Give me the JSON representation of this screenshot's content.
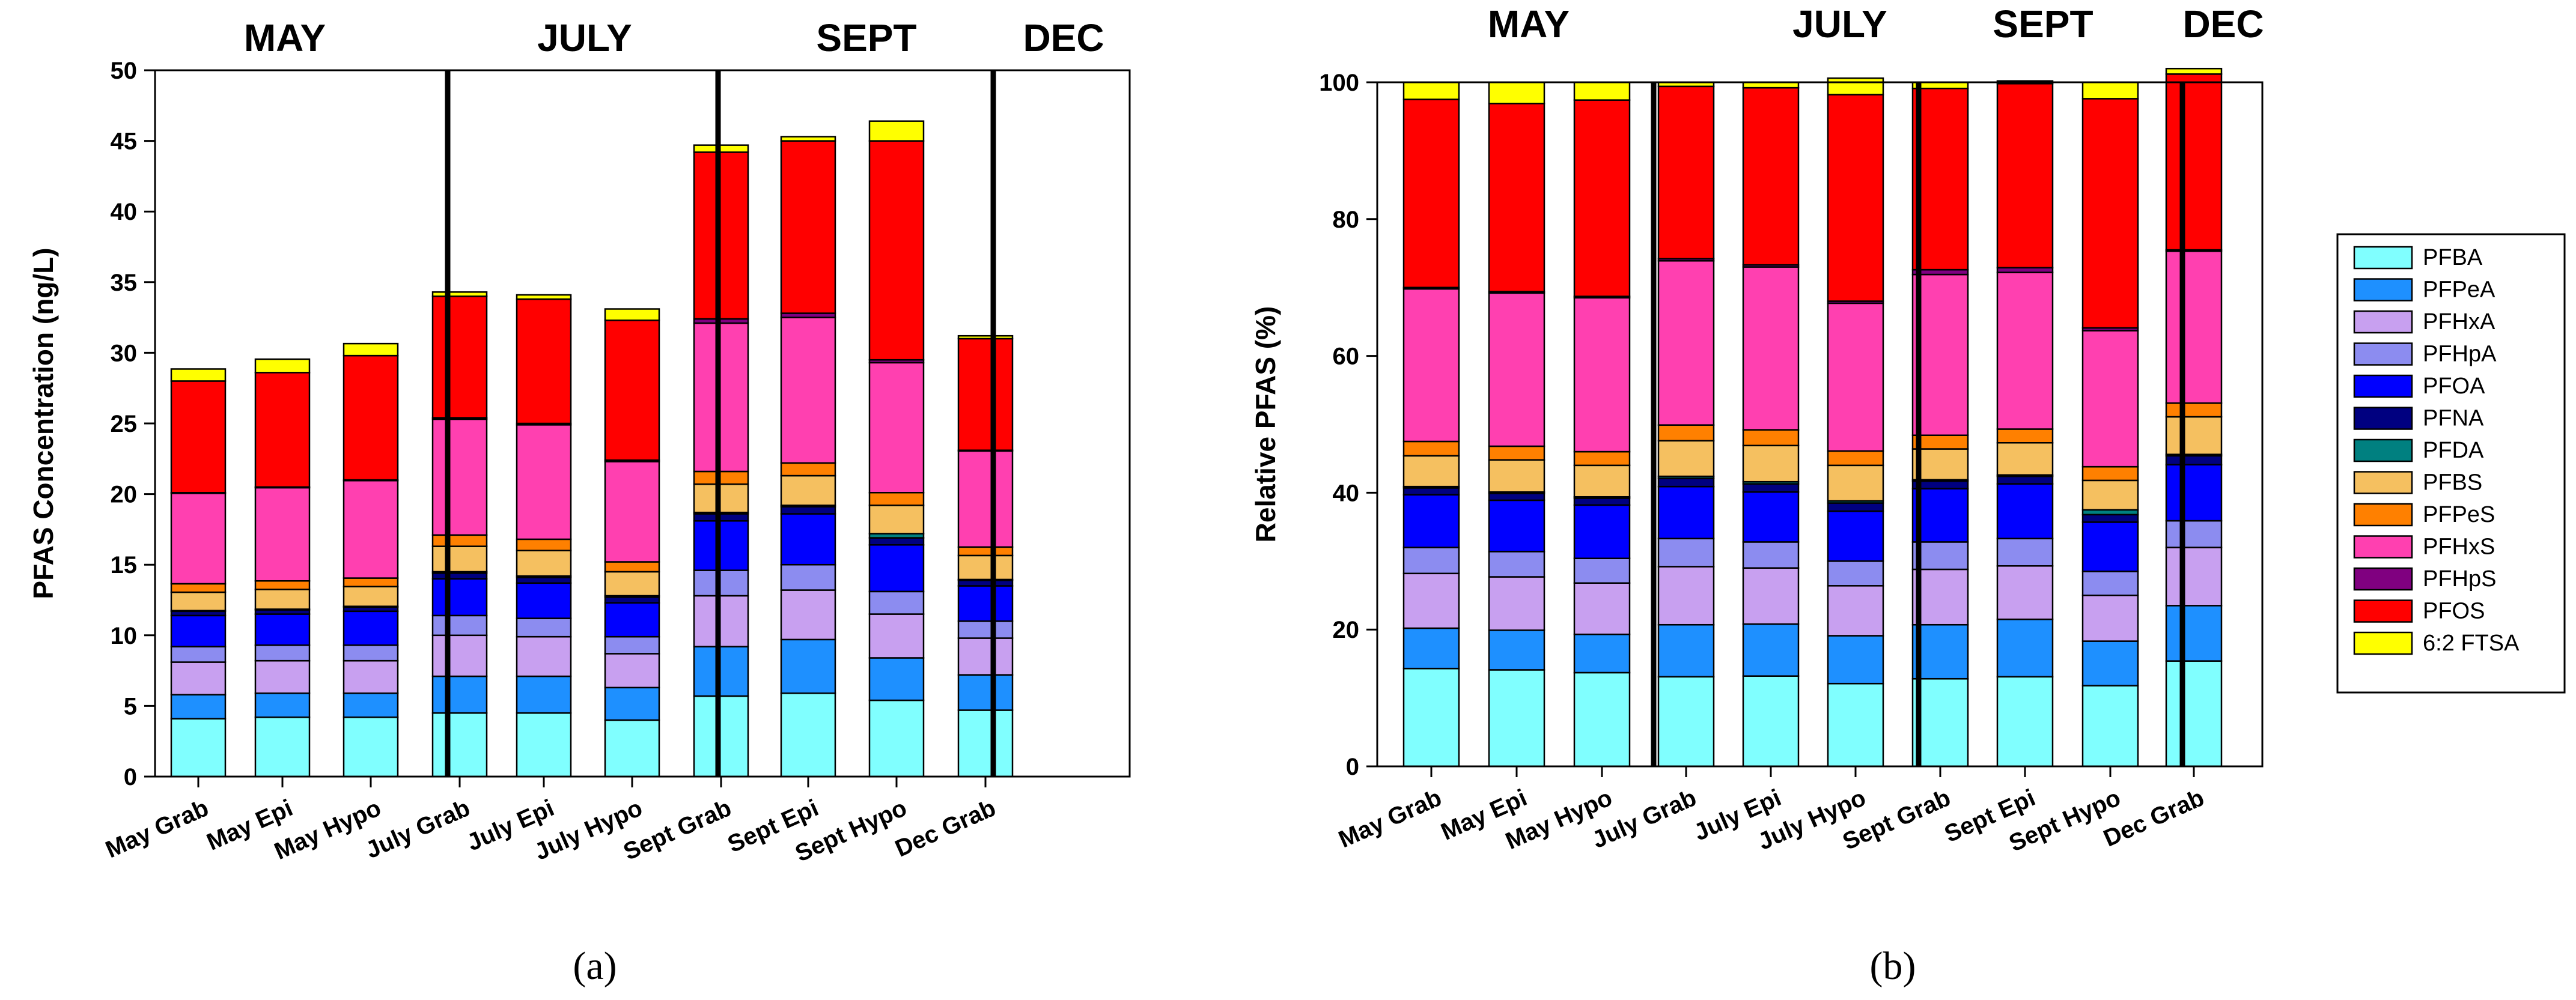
{
  "figure": {
    "colors": {
      "PFBA": "#80ffff",
      "PFPeA": "#1e90ff",
      "PFHxA": "#c8a0f0",
      "PFHpA": "#8c8cf0",
      "PFOA": "#0000ff",
      "PFNA": "#000080",
      "PFDA": "#008080",
      "PFBS": "#f5c060",
      "PFPeS": "#ff8000",
      "PFHxS": "#ff40b0",
      "PFHpS": "#800080",
      "PFOS": "#ff0000",
      "6:2 FTSA": "#ffff00"
    }
  },
  "chart_data": [
    {
      "panel": "(a)",
      "type": "bar",
      "stacked": true,
      "ylabel": "PFAS Concentration (ng/L)",
      "xlabel": "",
      "ylim": [
        0,
        50
      ],
      "yticks": [
        0,
        5,
        10,
        15,
        20,
        25,
        30,
        35,
        40,
        45,
        50
      ],
      "categories": [
        "May Grab",
        "May Epi",
        "May Hypo",
        "July Grab",
        "July Epi",
        "July Hypo",
        "Sept Grab",
        "Sept Epi",
        "Sept Hypo",
        "Dec Grab"
      ],
      "groups": [
        {
          "label": "MAY",
          "start": 0,
          "end": 2
        },
        {
          "label": "JULY",
          "start": 3,
          "end": 5
        },
        {
          "label": "SEPT",
          "start": 6,
          "end": 8
        },
        {
          "label": "DEC",
          "start": 9,
          "end": 9
        }
      ],
      "series": [
        {
          "name": "PFBA",
          "values": [
            4.1,
            4.2,
            4.2,
            4.5,
            4.5,
            4.0,
            5.7,
            5.9,
            5.4,
            4.7
          ]
        },
        {
          "name": "PFPeA",
          "values": [
            1.7,
            1.7,
            1.7,
            2.6,
            2.6,
            2.3,
            3.5,
            3.8,
            3.0,
            2.5
          ]
        },
        {
          "name": "PFHxA",
          "values": [
            2.3,
            2.3,
            2.3,
            2.9,
            2.8,
            2.4,
            3.6,
            3.5,
            3.1,
            2.6
          ]
        },
        {
          "name": "PFHpA",
          "values": [
            1.1,
            1.1,
            1.1,
            1.4,
            1.3,
            1.2,
            1.8,
            1.8,
            1.6,
            1.2
          ]
        },
        {
          "name": "PFOA",
          "values": [
            2.2,
            2.2,
            2.4,
            2.6,
            2.5,
            2.4,
            3.5,
            3.6,
            3.3,
            2.5
          ]
        },
        {
          "name": "PFNA",
          "values": [
            0.3,
            0.3,
            0.3,
            0.4,
            0.4,
            0.4,
            0.5,
            0.5,
            0.5,
            0.4
          ]
        },
        {
          "name": "PFDA",
          "values": [
            0.05,
            0.05,
            0.05,
            0.1,
            0.1,
            0.1,
            0.1,
            0.1,
            0.3,
            0.05
          ]
        },
        {
          "name": "PFBS",
          "values": [
            1.3,
            1.4,
            1.4,
            1.8,
            1.8,
            1.7,
            2.0,
            2.1,
            2.0,
            1.7
          ]
        },
        {
          "name": "PFPeS",
          "values": [
            0.6,
            0.6,
            0.6,
            0.8,
            0.8,
            0.7,
            0.9,
            0.9,
            0.9,
            0.6
          ]
        },
        {
          "name": "PFHxS",
          "values": [
            6.4,
            6.6,
            6.9,
            8.2,
            8.1,
            7.1,
            10.5,
            10.3,
            9.2,
            6.8
          ]
        },
        {
          "name": "PFHpS",
          "values": [
            0.05,
            0.05,
            0.05,
            0.1,
            0.1,
            0.1,
            0.3,
            0.3,
            0.2,
            0.05
          ]
        },
        {
          "name": "PFOS",
          "values": [
            7.9,
            8.1,
            8.8,
            8.6,
            8.8,
            9.9,
            11.8,
            12.2,
            15.5,
            7.9
          ]
        },
        {
          "name": "6:2 FTSA",
          "values": [
            0.85,
            0.95,
            0.85,
            0.3,
            0.3,
            0.8,
            0.5,
            0.3,
            1.4,
            0.2
          ]
        }
      ]
    },
    {
      "panel": "(b)",
      "type": "bar",
      "stacked": true,
      "ylabel": "Relative PFAS (%)",
      "xlabel": "",
      "ylim": [
        0,
        100
      ],
      "yticks": [
        0,
        20,
        40,
        60,
        80,
        100
      ],
      "categories": [
        "May Grab",
        "May Epi",
        "May Hypo",
        "July Grab",
        "July Epi",
        "July Hypo",
        "Sept Grab",
        "Sept Epi",
        "Sept Hypo",
        "Dec Grab"
      ],
      "groups": [
        {
          "label": "MAY",
          "start": 0,
          "end": 2
        },
        {
          "label": "JULY",
          "start": 3,
          "end": 5
        },
        {
          "label": "SEPT",
          "start": 6,
          "end": 8
        },
        {
          "label": "DEC",
          "start": 9,
          "end": 9
        }
      ],
      "series": [
        {
          "name": "PFBA",
          "values": [
            14.3,
            14.1,
            13.7,
            13.1,
            13.2,
            12.1,
            12.8,
            13.1,
            11.8,
            15.4
          ]
        },
        {
          "name": "PFPeA",
          "values": [
            5.9,
            5.8,
            5.6,
            7.6,
            7.6,
            7.0,
            7.9,
            8.4,
            6.5,
            8.1
          ]
        },
        {
          "name": "PFHxA",
          "values": [
            8.0,
            7.8,
            7.5,
            8.5,
            8.2,
            7.3,
            8.1,
            7.8,
            6.7,
            8.5
          ]
        },
        {
          "name": "PFHpA",
          "values": [
            3.8,
            3.7,
            3.6,
            4.1,
            3.8,
            3.6,
            4.0,
            4.0,
            3.5,
            3.9
          ]
        },
        {
          "name": "PFOA",
          "values": [
            7.7,
            7.5,
            7.8,
            7.6,
            7.3,
            7.3,
            7.8,
            8.0,
            7.2,
            8.2
          ]
        },
        {
          "name": "PFNA",
          "values": [
            1.0,
            1.0,
            1.0,
            1.2,
            1.2,
            1.2,
            1.1,
            1.1,
            1.1,
            1.3
          ]
        },
        {
          "name": "PFDA",
          "values": [
            0.2,
            0.2,
            0.2,
            0.3,
            0.3,
            0.3,
            0.2,
            0.2,
            0.7,
            0.2
          ]
        },
        {
          "name": "PFBS",
          "values": [
            4.5,
            4.7,
            4.6,
            5.2,
            5.3,
            5.2,
            4.5,
            4.7,
            4.3,
            5.5
          ]
        },
        {
          "name": "PFPeS",
          "values": [
            2.1,
            2.0,
            2.0,
            2.3,
            2.3,
            2.1,
            2.0,
            2.0,
            2.0,
            2.0
          ]
        },
        {
          "name": "PFHxS",
          "values": [
            22.3,
            22.4,
            22.5,
            24.0,
            23.8,
            21.6,
            23.5,
            22.9,
            19.9,
            22.2
          ]
        },
        {
          "name": "PFHpS",
          "values": [
            0.2,
            0.2,
            0.2,
            0.3,
            0.3,
            0.3,
            0.7,
            0.7,
            0.4,
            0.2
          ]
        },
        {
          "name": "PFOS",
          "values": [
            27.5,
            27.5,
            28.7,
            25.2,
            25.9,
            30.2,
            26.5,
            26.9,
            33.5,
            25.7
          ]
        },
        {
          "name": "6:2 FTSA",
          "values": [
            2.5,
            3.1,
            2.6,
            0.6,
            0.8,
            2.4,
            0.9,
            0.4,
            2.4,
            0.8
          ]
        }
      ]
    }
  ]
}
